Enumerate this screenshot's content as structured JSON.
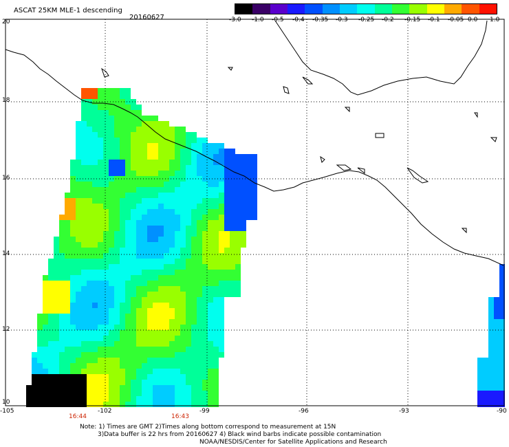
{
  "header": {
    "title": "ASCAT 25KM MLE-1 descending",
    "date": "20160627"
  },
  "colorbar": {
    "labels": [
      "-3.0",
      "-1.0",
      "-0.5",
      "-0.4",
      "-0.35",
      "-0.3",
      "-0.25",
      "-0.2",
      "-0.15",
      "-0.1",
      "-0.05",
      "0.0",
      "1.0"
    ],
    "colors": [
      "#000000",
      "#3a0066",
      "#5a00cc",
      "#1a1aff",
      "#0050ff",
      "#0090ff",
      "#00ccff",
      "#00ffee",
      "#00ff99",
      "#33ff33",
      "#99ff00",
      "#ffff00",
      "#ffaa00",
      "#ff5500",
      "#ff1100"
    ]
  },
  "axes": {
    "lat_labels": [
      "20",
      "18",
      "16",
      "14",
      "12",
      "10"
    ],
    "lon_labels": [
      "-105",
      "-102",
      "-99",
      "-96",
      "-93",
      "-90"
    ]
  },
  "times": [
    "16:44",
    "16:43"
  ],
  "notes": {
    "line1": "Note: 1) Times are GMT 2)Times along bottom correspond to measurement at 15N",
    "line2": "3)Data buffer is 22 hrs from 20160627 4) Black wind barbs indicate possible contamination",
    "line3": "NOAA/NESDIS/Center for Satellite Applications and Research"
  }
}
